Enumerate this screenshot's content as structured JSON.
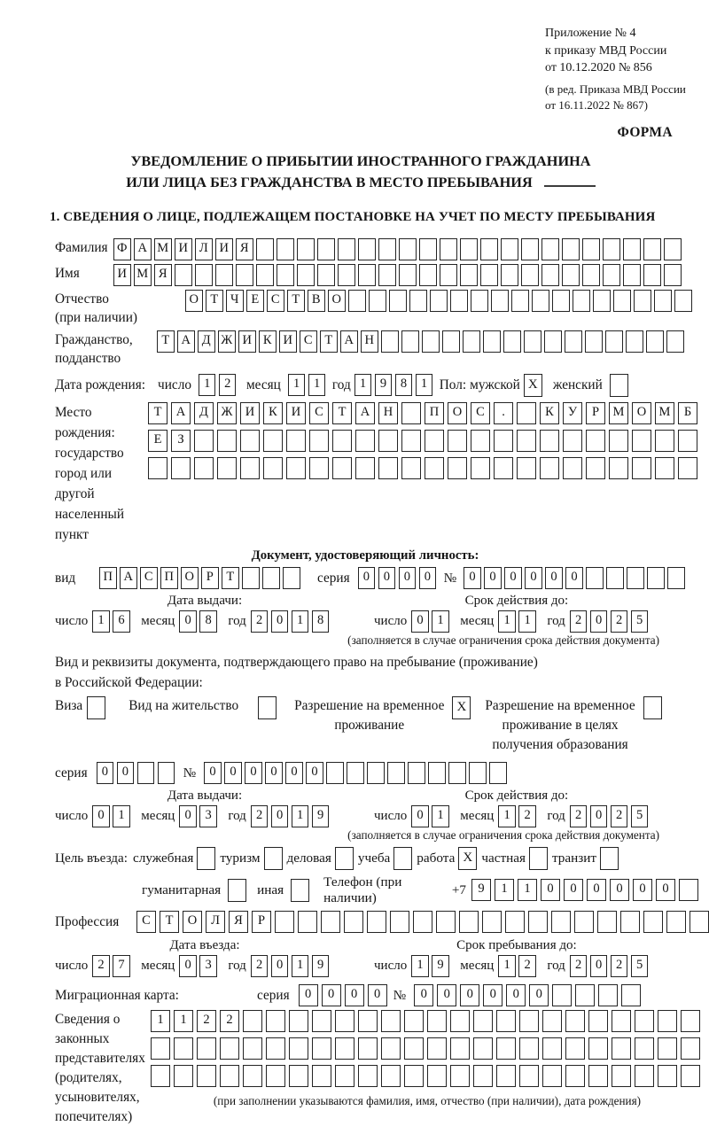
{
  "header": {
    "appendix_lines": [
      "Приложение № 4",
      "к приказу МВД России",
      "от 10.12.2020 № 856"
    ],
    "edition_lines": [
      "(в ред. Приказа МВД России",
      "от 16.11.2022 № 867)"
    ],
    "forma": "ФОРМА"
  },
  "title": {
    "line1": "УВЕДОМЛЕНИЕ О ПРИБЫТИИ ИНОСТРАННОГО ГРАЖДАНИНА",
    "line2": "ИЛИ ЛИЦА БЕЗ ГРАЖДАНСТВА В МЕСТО ПРЕБЫВАНИЯ"
  },
  "section1_title": "1. СВЕДЕНИЯ О ЛИЦЕ, ПОДЛЕЖАЩЕМ ПОСТАНОВКЕ НА УЧЕТ ПО МЕСТУ ПРЕБЫВАНИЯ",
  "labels": {
    "day": "число",
    "month": "месяц",
    "year": "год",
    "issue_date": "Дата выдачи:",
    "valid_until": "Срок действия до:",
    "entry_date": "Дата въезда:",
    "stay_until": "Срок пребывания до:",
    "series": "серия",
    "number": "№",
    "validity_note": "(заполняется в случае ограничения срока действия документа)"
  },
  "person": {
    "surname": {
      "label": "Фамилия",
      "value": "ФАМИЛИЯ",
      "total": 28
    },
    "name": {
      "label": "Имя",
      "value": "ИМЯ",
      "total": 28
    },
    "patronymic": {
      "label": "Отчество",
      "label2": "(при наличии)",
      "value": "ОТЧЕСТВО",
      "total": 25
    },
    "citizenship": {
      "label": "Гражданство,",
      "label2": "подданство",
      "value": "ТАДЖИКИСТАН",
      "total": 26
    },
    "birth_date": {
      "label": "Дата рождения:",
      "day": "12",
      "month": "11",
      "year": "1981"
    },
    "sex": {
      "label": "Пол:",
      "male": "мужской",
      "male_checked": true,
      "female": "женский",
      "female_checked": false
    },
    "birth_place": {
      "label": "Место рождения:",
      "sub1": "государство",
      "sub2": "город или другой",
      "sub3": "населенный пункт",
      "row1": {
        "value": "ТАДЖИКИСТАН ПОС. КУРМОМБ",
        "total": 24
      },
      "row2": {
        "value": "ЕЗ",
        "total": 24
      },
      "row3": {
        "value": "",
        "total": 24
      }
    }
  },
  "identity_doc": {
    "header": "Документ, удостоверяющий личность:",
    "kind": {
      "label": "вид",
      "value": "ПАСПОРТ",
      "total": 10
    },
    "series": {
      "value": "0000",
      "total": 4
    },
    "number": {
      "value": "000000",
      "total": 11
    },
    "issue": {
      "day": "16",
      "month": "08",
      "year": "2018"
    },
    "valid": {
      "day": "01",
      "month": "11",
      "year": "2025"
    }
  },
  "stay_doc": {
    "intro1": "Вид и реквизиты документа, подтверждающего право на пребывание (проживание)",
    "intro2": "в Российской Федерации:",
    "visa": {
      "label": "Виза",
      "checked": false
    },
    "residence_permit": {
      "label": "Вид на жительство",
      "checked": false
    },
    "temp_residence": {
      "line1": "Разрешение на временное",
      "line2": "проживание",
      "checked": true
    },
    "temp_residence_edu": {
      "line1": "Разрешение на временное",
      "line2": "проживание в целях",
      "line3": "получения образования",
      "checked": false
    },
    "series": {
      "value": "00",
      "total": 4
    },
    "number": {
      "value": "000000",
      "total": 15
    },
    "issue": {
      "day": "01",
      "month": "03",
      "year": "2019"
    },
    "valid": {
      "day": "01",
      "month": "12",
      "year": "2025"
    }
  },
  "visit": {
    "purpose_label": "Цель въезда:",
    "purposes": [
      {
        "label": "служебная",
        "checked": false
      },
      {
        "label": "туризм",
        "checked": false
      },
      {
        "label": "деловая",
        "checked": false
      },
      {
        "label": "учеба",
        "checked": false
      },
      {
        "label": "работа",
        "checked": true
      },
      {
        "label": "частная",
        "checked": false
      },
      {
        "label": "транзит",
        "checked": false
      }
    ],
    "purposes2": [
      {
        "label": "гуманитарная",
        "checked": false
      },
      {
        "label": "иная",
        "checked": false
      }
    ],
    "phone": {
      "label": "Телефон (при наличии)",
      "prefix": "+7",
      "value": "911000000",
      "total": 10
    },
    "profession": {
      "label": "Профессия",
      "value": "СТОЛЯР",
      "total": 25
    },
    "entry": {
      "day": "27",
      "month": "03",
      "year": "2019"
    },
    "stay": {
      "day": "19",
      "month": "12",
      "year": "2025"
    }
  },
  "migration_card": {
    "label": "Миграционная карта:",
    "series": {
      "value": "0000",
      "total": 4
    },
    "number": {
      "value": "000000",
      "total": 10
    }
  },
  "legal_reps": {
    "label_lines": [
      "Сведения о",
      "законных",
      "представителях",
      "(родителях,",
      "усыновителях,",
      "попечителях)"
    ],
    "row1": {
      "value": "1122",
      "total": 24
    },
    "row2": {
      "value": "",
      "total": 24
    },
    "row3": {
      "value": "",
      "total": 24
    },
    "note": "(при заполнении указываются фамилия, имя, отчество (при наличии), дата рождения)"
  }
}
